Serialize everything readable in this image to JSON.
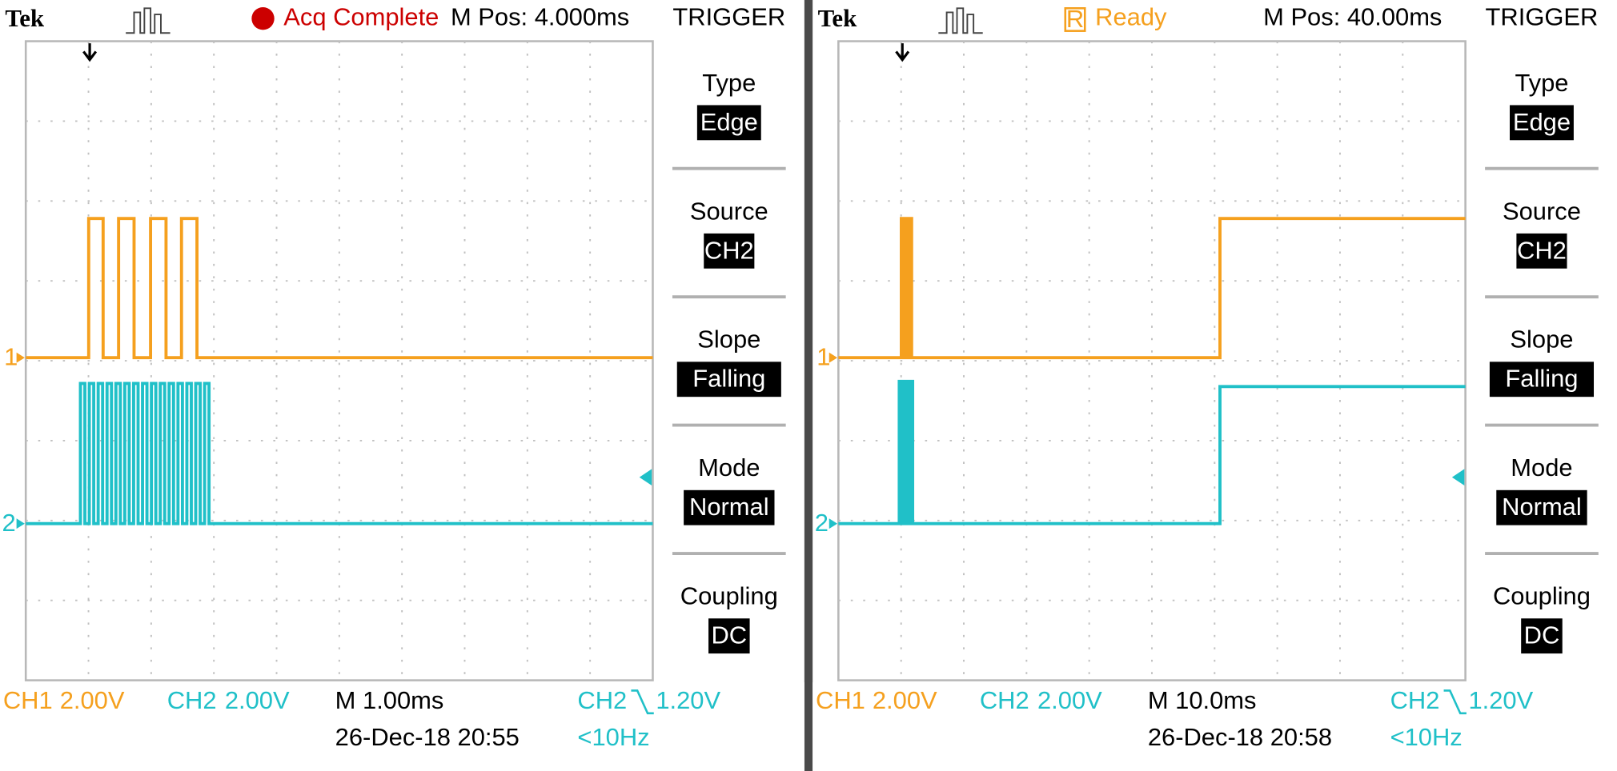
{
  "screens": [
    {
      "brand": "Tek",
      "status_icon": null,
      "status": "Acq Complete",
      "m_pos": "M Pos: 4.000ms",
      "trigger_title": "TRIGGER",
      "menu": [
        {
          "label": "Type",
          "value": "Edge"
        },
        {
          "label": "Source",
          "value": "CH2"
        },
        {
          "label": "Slope",
          "value": "Falling"
        },
        {
          "label": "Mode",
          "value": "Normal"
        },
        {
          "label": "Coupling",
          "value": "DC"
        }
      ],
      "ch1_marker": "1",
      "ch2_marker": "2",
      "ch1_label": "CH1",
      "ch1_scale": "2.00V",
      "ch2_label": "CH2",
      "ch2_scale": "2.00V",
      "timebase": "M 1.00ms",
      "datetime": "26-Dec-18 20:55",
      "trigger_source": "CH2",
      "trigger_level": "1.20V",
      "frequency": "<10Hz"
    },
    {
      "brand": "Tek",
      "status_icon": "R",
      "status": "Ready",
      "m_pos": "M Pos: 40.00ms",
      "trigger_title": "TRIGGER",
      "menu": [
        {
          "label": "Type",
          "value": "Edge"
        },
        {
          "label": "Source",
          "value": "CH2"
        },
        {
          "label": "Slope",
          "value": "Falling"
        },
        {
          "label": "Mode",
          "value": "Normal"
        },
        {
          "label": "Coupling",
          "value": "DC"
        }
      ],
      "ch1_marker": "1",
      "ch2_marker": "2",
      "ch1_label": "CH1",
      "ch1_scale": "2.00V",
      "ch2_label": "CH2",
      "ch2_scale": "2.00V",
      "timebase": "M 10.0ms",
      "datetime": "26-Dec-18 20:58",
      "trigger_source": "CH2",
      "trigger_level": "1.20V",
      "frequency": "<10Hz"
    }
  ]
}
